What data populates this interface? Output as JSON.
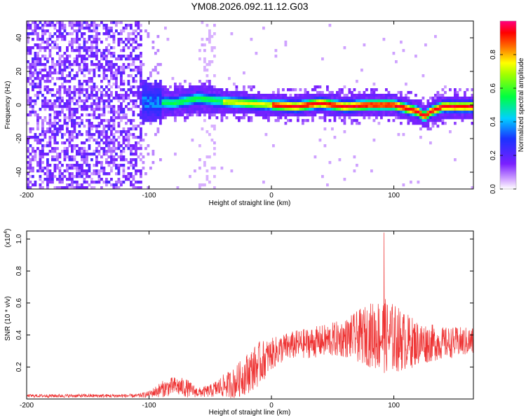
{
  "figure_title": "YM08.2026.092.11.12.G03",
  "colors": {
    "snr_line": "#ee3333",
    "axis": "#000000",
    "spectrogram_background": "#ffffff"
  },
  "chart_data": [
    {
      "type": "heatmap",
      "name": "spectrogram",
      "xlabel": "Height of straight line (km)",
      "ylabel": "Frequency (Hz)",
      "xlim": [
        -200,
        165
      ],
      "ylim": [
        -50,
        50
      ],
      "x_ticks": [
        -200,
        -100,
        0,
        100
      ],
      "x_tick_labels": [
        "-200",
        "-100",
        "0",
        "100"
      ],
      "y_ticks": [
        -40,
        -20,
        0,
        20,
        40
      ],
      "y_tick_labels": [
        "-40",
        "-20",
        "0",
        "20",
        "40"
      ],
      "colormap": "rainbow (white -> violet -> blue -> cyan -> green -> yellow -> red -> magenta)",
      "description_points": {
        "noise_region_km": [
          -200,
          -105
        ],
        "signal_band_center_hz": [
          [
            -100,
            2
          ],
          [
            -80,
            1
          ],
          [
            -60,
            4
          ],
          [
            -40,
            2
          ],
          [
            -20,
            1
          ],
          [
            0,
            0
          ],
          [
            20,
            -1
          ],
          [
            40,
            1
          ],
          [
            60,
            -1
          ],
          [
            80,
            0
          ],
          [
            100,
            0
          ],
          [
            110,
            -2
          ],
          [
            120,
            -4
          ],
          [
            125,
            -7
          ],
          [
            130,
            -4
          ],
          [
            140,
            -1
          ],
          [
            150,
            -1
          ],
          [
            165,
            -1
          ]
        ]
      },
      "colorbar": {
        "label": "Normalized spectral amplitude",
        "range": [
          0,
          1
        ],
        "ticks": [
          0,
          0.2,
          0.4,
          0.6,
          0.8
        ],
        "tick_labels": [
          "0.0",
          "0.2",
          "0.4",
          "0.6",
          "0.8"
        ]
      }
    },
    {
      "type": "line",
      "name": "snr",
      "xlabel": "Height of straight line (km)",
      "ylabel": "SNR (10 * v/v)",
      "y_multiplier_label": "(x10",
      "y_multiplier_exponent": "4",
      "y_multiplier_close": ")",
      "xlim": [
        -200,
        165
      ],
      "ylim": [
        0,
        1.05
      ],
      "x_ticks": [
        -200,
        -100,
        0,
        100
      ],
      "x_tick_labels": [
        "-200",
        "-100",
        "0",
        "100"
      ],
      "y_ticks": [
        0.2,
        0.4,
        0.6,
        0.8,
        1.0
      ],
      "y_tick_labels": [
        "0.2",
        "0.4",
        "0.6",
        "0.8",
        "1.0"
      ],
      "envelope": [
        {
          "x": -200,
          "mean": 0.02,
          "amp": 0.01
        },
        {
          "x": -110,
          "mean": 0.02,
          "amp": 0.012
        },
        {
          "x": -100,
          "mean": 0.03,
          "amp": 0.02
        },
        {
          "x": -90,
          "mean": 0.06,
          "amp": 0.05
        },
        {
          "x": -80,
          "mean": 0.08,
          "amp": 0.06
        },
        {
          "x": -70,
          "mean": 0.07,
          "amp": 0.06
        },
        {
          "x": -60,
          "mean": 0.04,
          "amp": 0.03
        },
        {
          "x": -50,
          "mean": 0.05,
          "amp": 0.04
        },
        {
          "x": -40,
          "mean": 0.08,
          "amp": 0.07
        },
        {
          "x": -30,
          "mean": 0.1,
          "amp": 0.1
        },
        {
          "x": -20,
          "mean": 0.16,
          "amp": 0.13
        },
        {
          "x": -10,
          "mean": 0.22,
          "amp": 0.14
        },
        {
          "x": 0,
          "mean": 0.28,
          "amp": 0.1
        },
        {
          "x": 10,
          "mean": 0.32,
          "amp": 0.09
        },
        {
          "x": 20,
          "mean": 0.34,
          "amp": 0.09
        },
        {
          "x": 40,
          "mean": 0.36,
          "amp": 0.1
        },
        {
          "x": 60,
          "mean": 0.38,
          "amp": 0.12
        },
        {
          "x": 80,
          "mean": 0.4,
          "amp": 0.2
        },
        {
          "x": 90,
          "mean": 0.4,
          "amp": 0.24
        },
        {
          "x": 100,
          "mean": 0.38,
          "amp": 0.22
        },
        {
          "x": 110,
          "mean": 0.36,
          "amp": 0.18
        },
        {
          "x": 120,
          "mean": 0.35,
          "amp": 0.14
        },
        {
          "x": 140,
          "mean": 0.35,
          "amp": 0.1
        },
        {
          "x": 165,
          "mean": 0.36,
          "amp": 0.09
        }
      ],
      "peak": {
        "x": 92,
        "y": 1.04
      }
    }
  ]
}
